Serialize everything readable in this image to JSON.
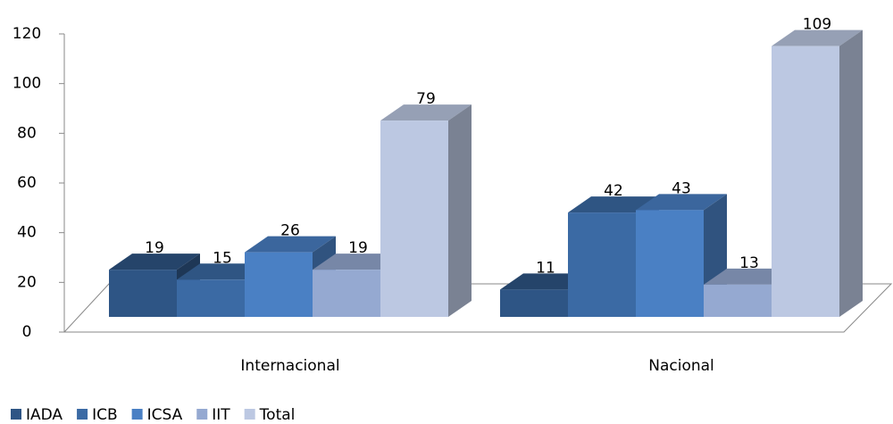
{
  "chart_data": {
    "type": "bar3d",
    "categories": [
      "Internacional",
      "Nacional"
    ],
    "series": [
      {
        "name": "IADA",
        "color": "#2e5585",
        "values": [
          19,
          11
        ]
      },
      {
        "name": "ICB",
        "color": "#3b6aa4",
        "values": [
          15,
          42
        ]
      },
      {
        "name": "ICSA",
        "color": "#4a80c4",
        "values": [
          26,
          43
        ]
      },
      {
        "name": "IIT",
        "color": "#95a9d1",
        "values": [
          19,
          13
        ]
      },
      {
        "name": "Total",
        "color": "#bcc8e2",
        "values": [
          79,
          109
        ]
      }
    ],
    "ylim": [
      0,
      120
    ],
    "yticks": [
      0,
      20,
      40,
      60,
      80,
      100,
      120
    ],
    "legend": "bottom-left"
  }
}
